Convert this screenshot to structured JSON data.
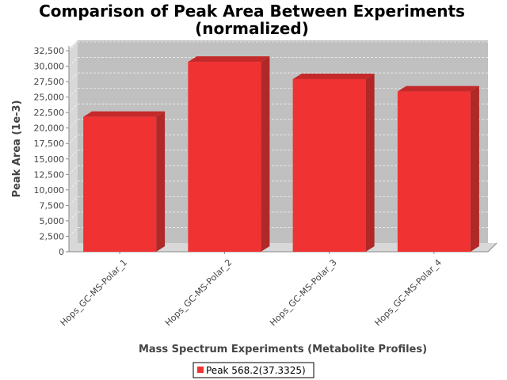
{
  "chart_data": {
    "type": "bar",
    "title": "Comparison of Peak Area Between Experiments",
    "title_line2": "(normalized)",
    "xlabel": "Mass Spectrum Experiments (Metabolite Profiles)",
    "ylabel": "Peak Area (1e-3)",
    "categories": [
      "Hops_GC-MS-Polar_1",
      "Hops_GC-MS-Polar_2",
      "Hops_GC-MS-Polar_3",
      "Hops_GC-MS-Polar_4"
    ],
    "series": [
      {
        "name": "Peak 568.2(37.3325)",
        "values": [
          21800,
          30700,
          27900,
          25900
        ]
      }
    ],
    "ylim": [
      0,
      32500
    ],
    "yticks": [
      0,
      2500,
      5000,
      7500,
      10000,
      12500,
      15000,
      17500,
      20000,
      22500,
      25000,
      27500,
      30000,
      32500
    ],
    "ytick_labels": [
      "0",
      "2,500",
      "5,000",
      "7,500",
      "10,000",
      "12,500",
      "15,000",
      "17,500",
      "20,000",
      "22,500",
      "25,000",
      "27,500",
      "30,000",
      "32,500"
    ],
    "grid": true,
    "legend_position": "bottom-center",
    "colors": {
      "bar_front": "#f03232",
      "bar_top": "#c42a2a",
      "bar_side": "#b02828",
      "plot_bg": "#c0c0c0",
      "plot_floor": "#d8d8d8",
      "grid": "#ffffff"
    }
  }
}
